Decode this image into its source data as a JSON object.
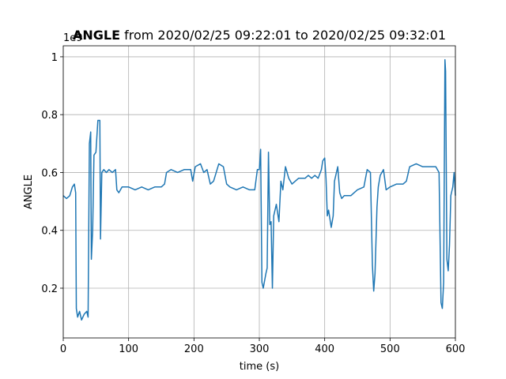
{
  "chart_data": {
    "type": "line",
    "title": "ANGLE",
    "subtitle": "from 2020/02/25 09:22:01 to 2020/02/25 09:32:01",
    "offset_text": "1e9",
    "x_label": "time (s)",
    "y_label": "ANGLE",
    "xlim": [
      0,
      600
    ],
    "ylim": [
      0.028,
      1.038
    ],
    "xticks": [
      0,
      100,
      200,
      300,
      400,
      500,
      600
    ],
    "yticks": [
      0.2,
      0.4,
      0.6,
      0.8,
      1.0
    ],
    "grid": true,
    "x": [
      0,
      5,
      10,
      14,
      17,
      19,
      20,
      22,
      25,
      28,
      32,
      36,
      38,
      40,
      42,
      43,
      45,
      47,
      50,
      53,
      56,
      57,
      59,
      62,
      66,
      70,
      75,
      80,
      82,
      85,
      90,
      100,
      110,
      120,
      130,
      140,
      150,
      155,
      158,
      165,
      175,
      185,
      195,
      198,
      202,
      210,
      215,
      220,
      225,
      230,
      238,
      245,
      250,
      255,
      265,
      275,
      285,
      293,
      297,
      300,
      302,
      304,
      306,
      310,
      312,
      314,
      316,
      318,
      320,
      322,
      326,
      330,
      333,
      336,
      340,
      345,
      350,
      355,
      360,
      365,
      370,
      375,
      380,
      385,
      390,
      395,
      397,
      400,
      402,
      404,
      406,
      410,
      413,
      415,
      418,
      420,
      423,
      426,
      430,
      440,
      450,
      460,
      465,
      470,
      473,
      475,
      477,
      480,
      482,
      485,
      490,
      494,
      500,
      510,
      520,
      525,
      530,
      540,
      550,
      560,
      570,
      575,
      578,
      580,
      582,
      584,
      585,
      587,
      589,
      591,
      593,
      596,
      598,
      600
    ],
    "series": [
      {
        "name": "ANGLE",
        "color": "#1f77b4",
        "values": [
          0.52,
          0.51,
          0.52,
          0.55,
          0.56,
          0.53,
          0.13,
          0.1,
          0.12,
          0.09,
          0.11,
          0.12,
          0.1,
          0.7,
          0.74,
          0.3,
          0.4,
          0.66,
          0.67,
          0.78,
          0.78,
          0.37,
          0.6,
          0.61,
          0.6,
          0.61,
          0.6,
          0.61,
          0.54,
          0.53,
          0.55,
          0.55,
          0.54,
          0.55,
          0.54,
          0.55,
          0.55,
          0.56,
          0.6,
          0.61,
          0.6,
          0.61,
          0.61,
          0.57,
          0.62,
          0.63,
          0.6,
          0.61,
          0.56,
          0.57,
          0.63,
          0.62,
          0.56,
          0.55,
          0.54,
          0.55,
          0.54,
          0.54,
          0.61,
          0.61,
          0.68,
          0.22,
          0.2,
          0.25,
          0.27,
          0.67,
          0.42,
          0.43,
          0.2,
          0.45,
          0.49,
          0.43,
          0.57,
          0.54,
          0.62,
          0.58,
          0.56,
          0.57,
          0.58,
          0.58,
          0.58,
          0.59,
          0.58,
          0.59,
          0.58,
          0.61,
          0.64,
          0.65,
          0.58,
          0.45,
          0.47,
          0.41,
          0.45,
          0.57,
          0.6,
          0.62,
          0.53,
          0.51,
          0.52,
          0.52,
          0.54,
          0.55,
          0.61,
          0.6,
          0.28,
          0.19,
          0.25,
          0.48,
          0.55,
          0.59,
          0.61,
          0.54,
          0.55,
          0.56,
          0.56,
          0.57,
          0.62,
          0.63,
          0.62,
          0.62,
          0.62,
          0.6,
          0.15,
          0.13,
          0.22,
          0.99,
          0.95,
          0.3,
          0.26,
          0.35,
          0.52,
          0.55,
          0.6,
          0.52
        ]
      }
    ]
  }
}
